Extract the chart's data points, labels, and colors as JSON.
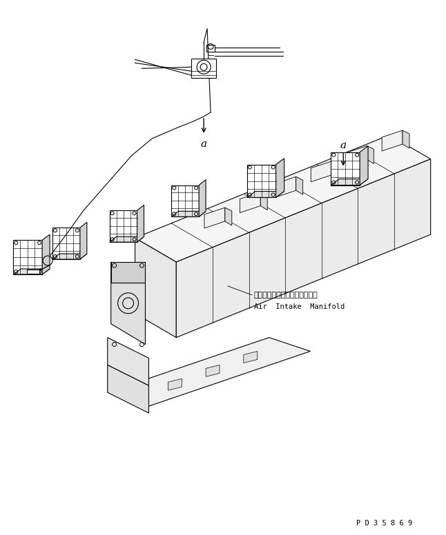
{
  "background_color": "#ffffff",
  "line_color": "#000000",
  "annotation_japanese": "エアーインテークマニホールド",
  "annotation_english": "Air  Intake  Manifold",
  "label_a": "a",
  "part_number": "P D 3 5 8 6 9",
  "fig_width": 6.46,
  "fig_height": 7.76,
  "dpi": 100
}
